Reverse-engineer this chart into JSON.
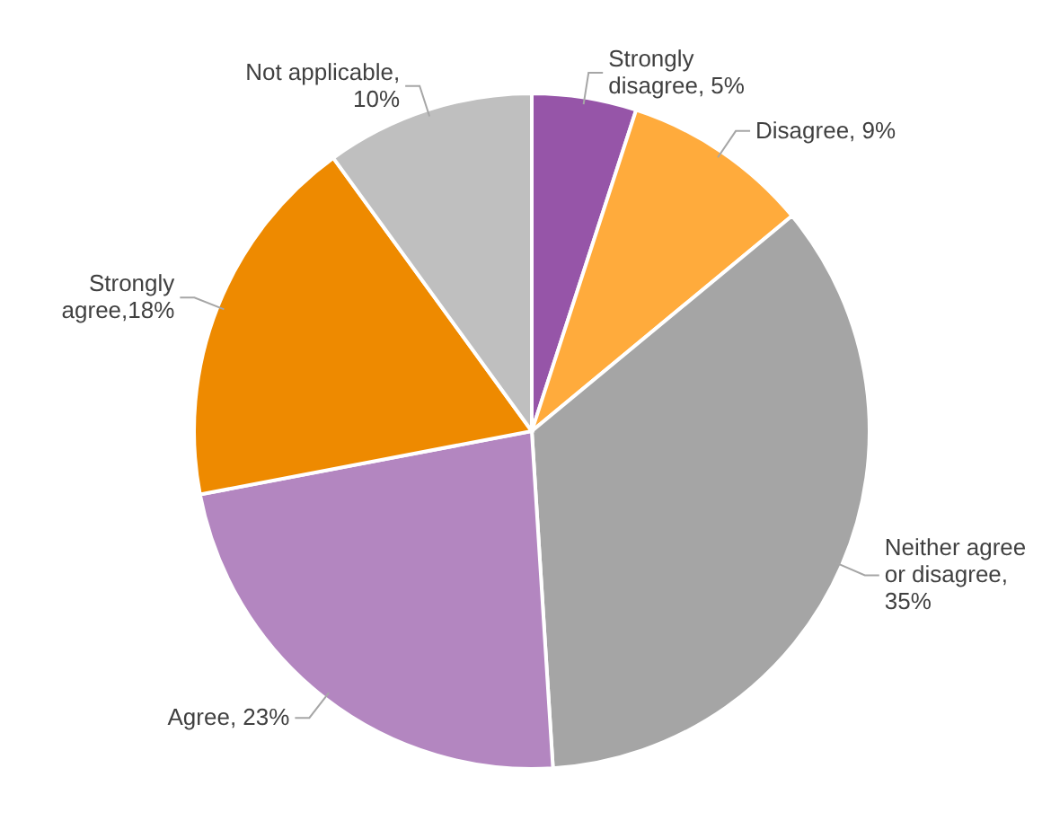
{
  "chart_data": {
    "type": "pie",
    "categories": [
      "Strongly disagree",
      "Disagree",
      "Neither agree or disagree",
      "Agree",
      "Strongly agree",
      "Not applicable"
    ],
    "values": [
      5,
      9,
      35,
      23,
      18,
      10
    ],
    "colors": [
      "#9655a8",
      "#ffab3c",
      "#a5a5a5",
      "#b386c0",
      "#ee8a00",
      "#bfbfbf"
    ],
    "value_labels": [
      ", 5%",
      ", 9%",
      ", 35%",
      ", 23%",
      ",18%",
      ", 10%"
    ]
  }
}
